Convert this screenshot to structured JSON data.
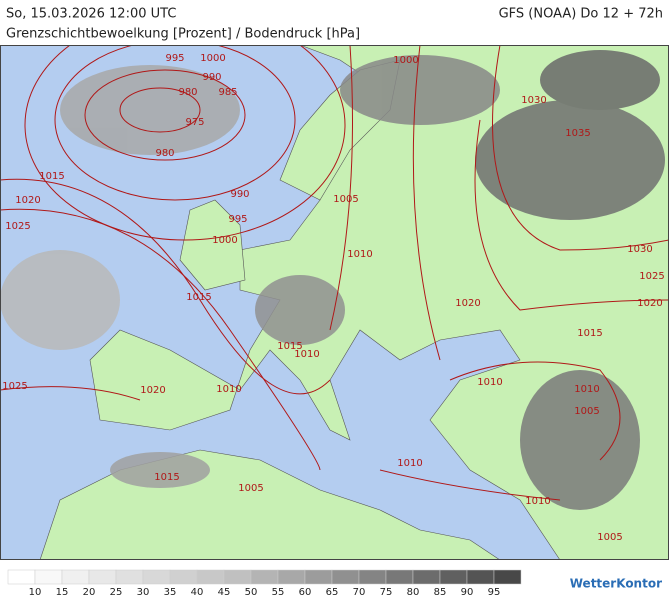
{
  "header": {
    "valid_time": "So, 15.03.2026 12:00 UTC",
    "model": "GFS (NOAA) Do 12 + 72h",
    "subtitle": "Grenzschichtbewoelkung [Prozent] / Bodendruck [hPa]"
  },
  "isobar_labels": [
    "995",
    "1000",
    "1000",
    "990",
    "980",
    "985",
    "975",
    "980",
    "1015",
    "1020",
    "990",
    "1025",
    "1005",
    "995",
    "1000",
    "1010",
    "1030",
    "1035",
    "1030",
    "1025",
    "1020",
    "1020",
    "1015",
    "1015",
    "1010",
    "1015",
    "1025",
    "1020",
    "1010",
    "1010",
    "1010",
    "1005",
    "1010",
    "1015",
    "1005",
    "1010",
    "1005"
  ],
  "legend": {
    "labels": [
      "10",
      "15",
      "20",
      "25",
      "30",
      "35",
      "40",
      "45",
      "50",
      "55",
      "60",
      "65",
      "70",
      "75",
      "80",
      "85",
      "90",
      "95"
    ],
    "colors": [
      "#ffffff",
      "#f8f8f8",
      "#f0f0f0",
      "#e8e8e8",
      "#e0e0e0",
      "#d8d8d8",
      "#d0d0d0",
      "#c8c8c8",
      "#c0c0c0",
      "#b4b4b4",
      "#a8a8a8",
      "#9c9c9c",
      "#909090",
      "#848484",
      "#787878",
      "#6c6c6c",
      "#606060",
      "#545454",
      "#484848"
    ]
  },
  "logo": "WetterKontor"
}
